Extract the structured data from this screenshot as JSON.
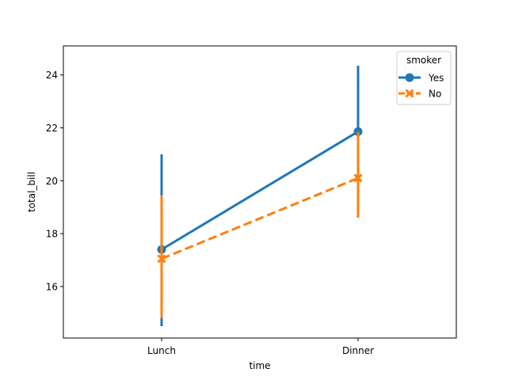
{
  "chart_data": {
    "type": "line",
    "categories": [
      "Lunch",
      "Dinner"
    ],
    "xlabel": "time",
    "ylabel": "total_bill",
    "ylim": [
      14.05,
      25.1
    ],
    "yticks": [
      16,
      18,
      20,
      22,
      24
    ],
    "grid": false,
    "legend": {
      "title": "smoker",
      "placement": "top-right"
    },
    "series": [
      {
        "name": "Yes",
        "color": "#1f77b4",
        "marker": "circle",
        "linestyle": "solid",
        "values": [
          17.4,
          21.86
        ],
        "ci_low": [
          14.5,
          19.5
        ],
        "ci_high": [
          21.0,
          24.35
        ]
      },
      {
        "name": "No",
        "color": "#ff7f0e",
        "marker": "x",
        "linestyle": "dashed",
        "values": [
          17.05,
          20.1
        ],
        "ci_low": [
          14.8,
          18.6
        ],
        "ci_high": [
          19.45,
          21.85
        ]
      }
    ]
  }
}
